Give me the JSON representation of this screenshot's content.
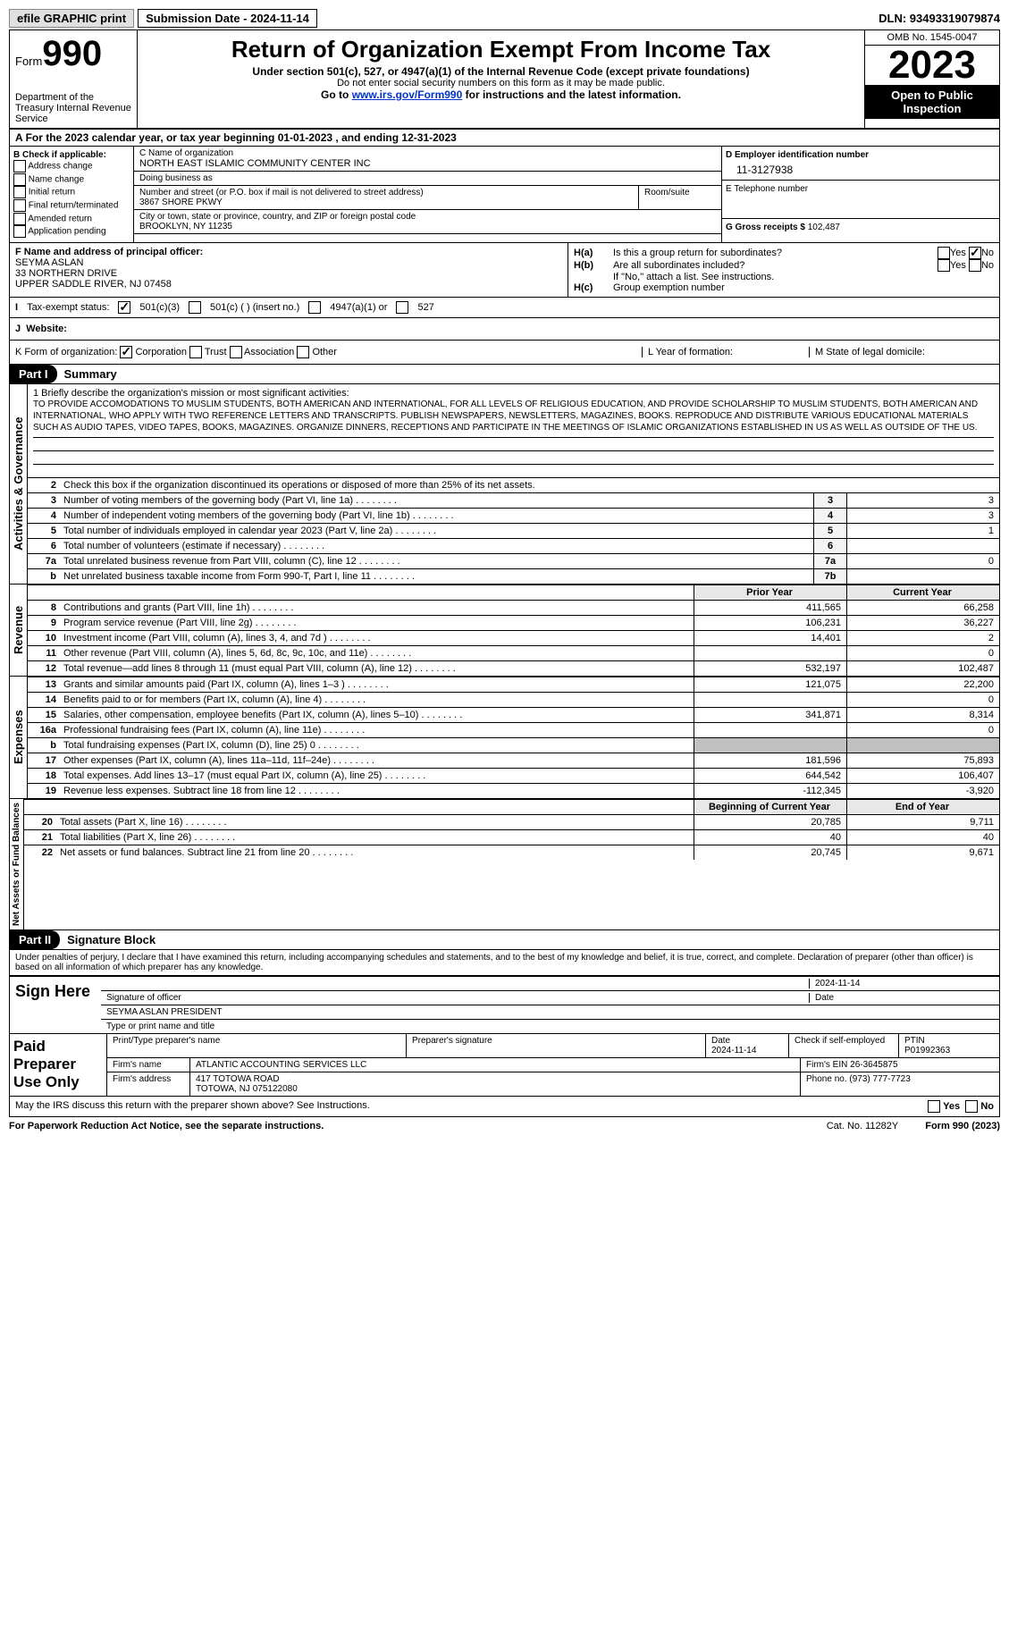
{
  "topbar": {
    "efile": "efile GRAPHIC print",
    "subdate_label": "Submission Date - 2024-11-14",
    "dln": "DLN: 93493319079874"
  },
  "header": {
    "form_word": "Form",
    "form_num": "990",
    "title": "Return of Organization Exempt From Income Tax",
    "under": "Under section 501(c), 527, or 4947(a)(1) of the Internal Revenue Code (except private foundations)",
    "ssn": "Do not enter social security numbers on this form as it may be made public.",
    "goto_pre": "Go to ",
    "goto_link": "www.irs.gov/Form990",
    "goto_post": " for instructions and the latest information.",
    "dept": "Department of the Treasury Internal Revenue Service",
    "omb": "OMB No. 1545-0047",
    "year": "2023",
    "open": "Open to Public Inspection"
  },
  "A": {
    "text_pre": "For the 2023 calendar year, or tax year beginning ",
    "begin": "01-01-2023",
    "mid": " , and ending ",
    "end": "12-31-2023"
  },
  "B": {
    "head": "B Check if applicable:",
    "opts": [
      "Address change",
      "Name change",
      "Initial return",
      "Final return/terminated",
      "Amended return",
      "Application pending"
    ]
  },
  "C": {
    "name_lab": "C Name of organization",
    "name": "NORTH EAST ISLAMIC COMMUNITY CENTER INC",
    "dba_lab": "Doing business as",
    "street_lab": "Number and street (or P.O. box if mail is not delivered to street address)",
    "street": "3867 SHORE PKWY",
    "room_lab": "Room/suite",
    "city_lab": "City or town, state or province, country, and ZIP or foreign postal code",
    "city": "BROOKLYN, NY  11235"
  },
  "D": {
    "lab": "D Employer identification number",
    "val": "11-3127938"
  },
  "E": {
    "lab": "E Telephone number"
  },
  "G": {
    "lab": "G Gross receipts $",
    "val": "102,487"
  },
  "F": {
    "lab": "F  Name and address of principal officer:",
    "name": "SEYMA ASLAN",
    "addr1": "33 NORTHERN DRIVE",
    "addr2": "UPPER SADDLE RIVER, NJ  07458"
  },
  "H": {
    "a": "Is this a group return for subordinates?",
    "b": "Are all subordinates included?",
    "note": "If \"No,\" attach a list. See instructions.",
    "c": "Group exemption number"
  },
  "I": {
    "lab": "Tax-exempt status:",
    "o1": "501(c)(3)",
    "o2": "501(c) (  ) (insert no.)",
    "o3": "4947(a)(1) or",
    "o4": "527"
  },
  "J": {
    "lab": "Website:"
  },
  "K": {
    "lab": "K Form of organization:",
    "o1": "Corporation",
    "o2": "Trust",
    "o3": "Association",
    "o4": "Other"
  },
  "L": {
    "lab": "L Year of formation:"
  },
  "M": {
    "lab": "M State of legal domicile:"
  },
  "part1": {
    "num": "Part I",
    "name": "Summary"
  },
  "summary": {
    "brief": "1  Briefly describe the organization's mission or most significant activities:",
    "mission": "TO PROVIDE ACCOMODATIONS TO MUSLIM STUDENTS, BOTH AMERICAN AND INTERNATIONAL, FOR ALL LEVELS OF RELIGIOUS EDUCATION, AND PROVIDE SCHOLARSHIP TO MUSLIM STUDENTS, BOTH AMERICAN AND INTERNATIONAL, WHO APPLY WITH TWO REFERENCE LETTERS AND TRANSCRIPTS. PUBLISH NEWSPAPERS, NEWSLETTERS, MAGAZINES, BOOKS. REPRODUCE AND DISTRIBUTE VARIOUS EDUCATIONAL MATERIALS SUCH AS AUDIO TAPES, VIDEO TAPES, BOOKS, MAGAZINES. ORGANIZE DINNERS, RECEPTIONS AND PARTICIPATE IN THE MEETINGS OF ISLAMIC ORGANIZATIONS ESTABLISHED IN US AS WELL AS OUTSIDE OF THE US.",
    "line2": "Check this box      if the organization discontinued its operations or disposed of more than 25% of its net assets.",
    "rows_gov": [
      {
        "n": "3",
        "d": "Number of voting members of the governing body (Part VI, line 1a)",
        "c": "3",
        "v": "3"
      },
      {
        "n": "4",
        "d": "Number of independent voting members of the governing body (Part VI, line 1b)",
        "c": "4",
        "v": "3"
      },
      {
        "n": "5",
        "d": "Total number of individuals employed in calendar year 2023 (Part V, line 2a)",
        "c": "5",
        "v": "1"
      },
      {
        "n": "6",
        "d": "Total number of volunteers (estimate if necessary)",
        "c": "6",
        "v": ""
      },
      {
        "n": "7a",
        "d": "Total unrelated business revenue from Part VIII, column (C), line 12",
        "c": "7a",
        "v": "0"
      },
      {
        "n": "b",
        "d": "Net unrelated business taxable income from Form 990-T, Part I, line 11",
        "c": "7b",
        "v": ""
      }
    ],
    "hdr_prior": "Prior Year",
    "hdr_curr": "Current Year",
    "rows_rev": [
      {
        "n": "8",
        "d": "Contributions and grants (Part VIII, line 1h)",
        "p": "411,565",
        "c": "66,258"
      },
      {
        "n": "9",
        "d": "Program service revenue (Part VIII, line 2g)",
        "p": "106,231",
        "c": "36,227"
      },
      {
        "n": "10",
        "d": "Investment income (Part VIII, column (A), lines 3, 4, and 7d )",
        "p": "14,401",
        "c": "2"
      },
      {
        "n": "11",
        "d": "Other revenue (Part VIII, column (A), lines 5, 6d, 8c, 9c, 10c, and 11e)",
        "p": "",
        "c": "0"
      },
      {
        "n": "12",
        "d": "Total revenue—add lines 8 through 11 (must equal Part VIII, column (A), line 12)",
        "p": "532,197",
        "c": "102,487"
      }
    ],
    "rows_exp": [
      {
        "n": "13",
        "d": "Grants and similar amounts paid (Part IX, column (A), lines 1–3 )",
        "p": "121,075",
        "c": "22,200"
      },
      {
        "n": "14",
        "d": "Benefits paid to or for members (Part IX, column (A), line 4)",
        "p": "",
        "c": "0"
      },
      {
        "n": "15",
        "d": "Salaries, other compensation, employee benefits (Part IX, column (A), lines 5–10)",
        "p": "341,871",
        "c": "8,314"
      },
      {
        "n": "16a",
        "d": "Professional fundraising fees (Part IX, column (A), line 11e)",
        "p": "",
        "c": "0"
      },
      {
        "n": "b",
        "d": "Total fundraising expenses (Part IX, column (D), line 25) 0",
        "p": "grey",
        "c": "grey"
      },
      {
        "n": "17",
        "d": "Other expenses (Part IX, column (A), lines 11a–11d, 11f–24e)",
        "p": "181,596",
        "c": "75,893"
      },
      {
        "n": "18",
        "d": "Total expenses. Add lines 13–17 (must equal Part IX, column (A), line 25)",
        "p": "644,542",
        "c": "106,407"
      },
      {
        "n": "19",
        "d": "Revenue less expenses. Subtract line 18 from line 12",
        "p": "-112,345",
        "c": "-3,920"
      }
    ],
    "hdr_begin": "Beginning of Current Year",
    "hdr_end": "End of Year",
    "rows_bal": [
      {
        "n": "20",
        "d": "Total assets (Part X, line 16)",
        "p": "20,785",
        "c": "9,711"
      },
      {
        "n": "21",
        "d": "Total liabilities (Part X, line 26)",
        "p": "40",
        "c": "40"
      },
      {
        "n": "22",
        "d": "Net assets or fund balances. Subtract line 21 from line 20",
        "p": "20,745",
        "c": "9,671"
      }
    ]
  },
  "tabs": {
    "gov": "Activities & Governance",
    "rev": "Revenue",
    "exp": "Expenses",
    "bal": "Net Assets or Fund Balances"
  },
  "part2": {
    "num": "Part II",
    "name": "Signature Block"
  },
  "sig": {
    "perjury": "Under penalties of perjury, I declare that I have examined this return, including accompanying schedules and statements, and to the best of my knowledge and belief, it is true, correct, and complete. Declaration of preparer (other than officer) is based on all information of which preparer has any knowledge.",
    "sign_here": "Sign Here",
    "sig_lab": "Signature of officer",
    "sig_date": "2024-11-14",
    "name_title": "SEYMA ASLAN  PRESIDENT",
    "name_lab": "Type or print name and title",
    "date_lab": "Date"
  },
  "paid": {
    "head": "Paid Preparer Use Only",
    "p1": "Print/Type preparer's name",
    "p2": "Preparer's signature",
    "p3_lab": "Date",
    "p3": "2024-11-14",
    "p4_lab": "Check        if self-employed",
    "p5_lab": "PTIN",
    "p5": "P01992363",
    "firm_name_lab": "Firm's name",
    "firm_name": "ATLANTIC ACCOUNTING SERVICES LLC",
    "firm_ein_lab": "Firm's EIN",
    "firm_ein": "26-3645875",
    "firm_addr_lab": "Firm's address",
    "firm_addr1": "417 TOTOWA ROAD",
    "firm_addr2": "TOTOWA, NJ  075122080",
    "phone_lab": "Phone no.",
    "phone": "(973) 777-7723"
  },
  "discuss": "May the IRS discuss this return with the preparer shown above? See Instructions.",
  "footer": {
    "pra": "For Paperwork Reduction Act Notice, see the separate instructions.",
    "cat": "Cat. No. 11282Y",
    "form": "Form 990 (2023)"
  },
  "yes": "Yes",
  "no": "No"
}
